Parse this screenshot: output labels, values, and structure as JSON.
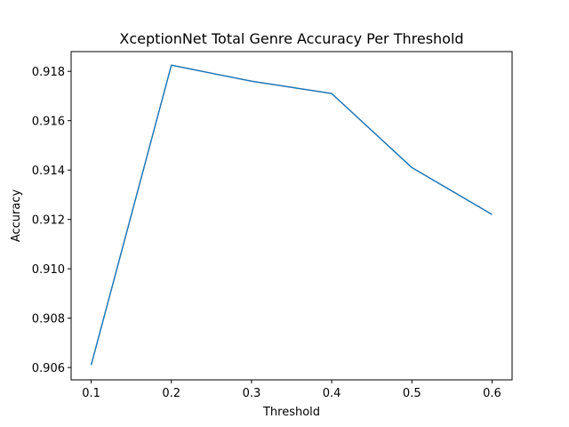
{
  "chart_data": {
    "type": "line",
    "title": "XceptionNet Total Genre Accuracy Per Threshold",
    "xlabel": "Threshold",
    "ylabel": "Accuracy",
    "x": [
      0.1,
      0.2,
      0.3,
      0.4,
      0.5,
      0.6
    ],
    "series": [
      {
        "values": [
          0.9061,
          0.91825,
          0.9176,
          0.9171,
          0.9141,
          0.9122
        ]
      }
    ],
    "xticks": [
      "0.1",
      "0.2",
      "0.3",
      "0.4",
      "0.5",
      "0.6"
    ],
    "yticks": [
      "0.906",
      "0.908",
      "0.910",
      "0.912",
      "0.914",
      "0.916",
      "0.918"
    ],
    "xlim": [
      0.075,
      0.625
    ],
    "ylim": [
      0.9055,
      0.9188
    ],
    "grid": false,
    "line_color": "#1f77b4"
  }
}
